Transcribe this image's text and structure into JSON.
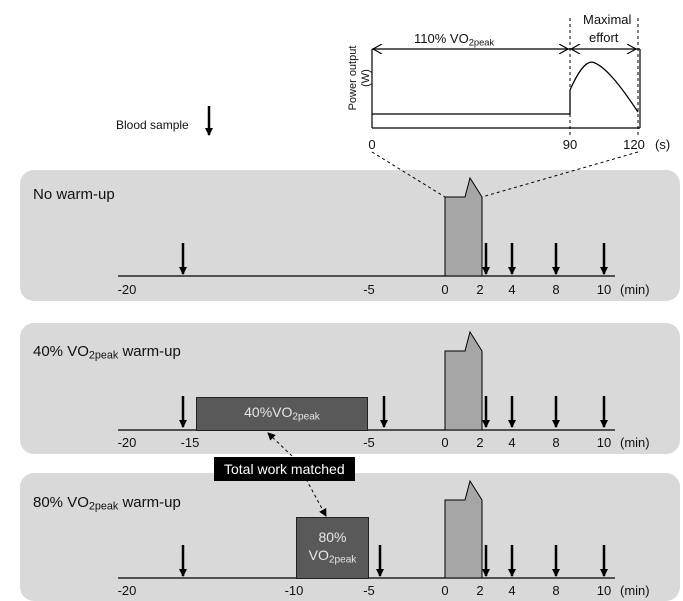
{
  "legend": {
    "blood_sample": "Blood sample"
  },
  "inset": {
    "y_label": "Power output",
    "y_unit": "(W)",
    "segment1": {
      "pre": "110% VO",
      "sub": "2peak"
    },
    "segment2_line1": "Maximal",
    "segment2_line2": "effort",
    "ticks": [
      "0",
      "90",
      "120"
    ],
    "unit": "(s)"
  },
  "panels": [
    {
      "title": {
        "pre": "No warm-up",
        "sub": "",
        "post": ""
      },
      "ticks": [
        "-20",
        "-5",
        "0",
        "2",
        "4",
        "8",
        "10"
      ],
      "unit": "(min)"
    },
    {
      "title": {
        "pre": "40% VO",
        "sub": "2peak",
        "post": " warm-up"
      },
      "ticks": [
        "-20",
        "-15",
        "-5",
        "0",
        "2",
        "4",
        "8",
        "10"
      ],
      "unit": "(min)",
      "box": {
        "line1_pre": "40%VO",
        "line1_sub": "2peak"
      }
    },
    {
      "title": {
        "pre": "80% VO",
        "sub": "2peak",
        "post": " warm-up"
      },
      "ticks": [
        "-20",
        "-10",
        "-5",
        "0",
        "2",
        "4",
        "8",
        "10"
      ],
      "unit": "(min)",
      "box": {
        "line1": "80%",
        "line2_pre": "VO",
        "line2_sub": "2peak"
      }
    }
  ],
  "matched_label": "Total work matched",
  "colors": {
    "panel": "#d9d9d9",
    "warmup_box": "#595959",
    "sprint_block": "#a6a6a6",
    "label_bg": "#000000"
  }
}
